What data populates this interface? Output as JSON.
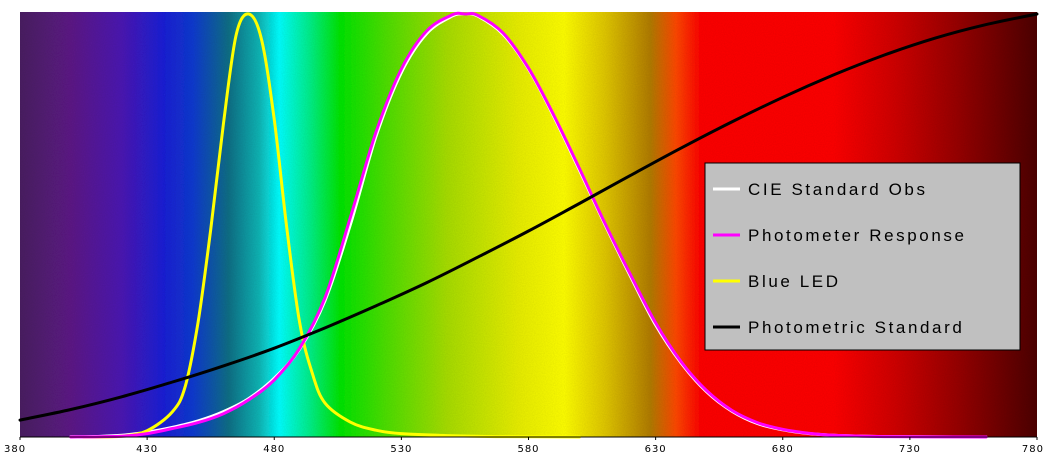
{
  "chart_data": {
    "type": "line",
    "title": "",
    "xlabel": "",
    "ylabel": "",
    "xlim": [
      380,
      780
    ],
    "ylim": [
      0,
      1
    ],
    "x_ticks": [
      "380",
      "430",
      "480",
      "530",
      "580",
      "630",
      "680",
      "730",
      "780"
    ],
    "grid": false,
    "legend_position": "right",
    "background": "visible light spectrum gradient (violet to dark red)",
    "series": [
      {
        "name": "CIE Standard Obs",
        "color": "#ffffff",
        "points": [
          [
            400,
            0.0004
          ],
          [
            410,
            0.0012
          ],
          [
            420,
            0.004
          ],
          [
            430,
            0.0116
          ],
          [
            440,
            0.023
          ],
          [
            450,
            0.038
          ],
          [
            460,
            0.06
          ],
          [
            470,
            0.091
          ],
          [
            480,
            0.139
          ],
          [
            490,
            0.208
          ],
          [
            500,
            0.323
          ],
          [
            510,
            0.503
          ],
          [
            520,
            0.71
          ],
          [
            530,
            0.862
          ],
          [
            540,
            0.954
          ],
          [
            550,
            0.995
          ],
          [
            555,
            1.0
          ],
          [
            560,
            0.995
          ],
          [
            570,
            0.952
          ],
          [
            580,
            0.87
          ],
          [
            590,
            0.757
          ],
          [
            600,
            0.631
          ],
          [
            610,
            0.503
          ],
          [
            620,
            0.381
          ],
          [
            630,
            0.265
          ],
          [
            640,
            0.175
          ],
          [
            650,
            0.107
          ],
          [
            660,
            0.061
          ],
          [
            670,
            0.032
          ],
          [
            680,
            0.017
          ],
          [
            690,
            0.0082
          ],
          [
            700,
            0.0041
          ],
          [
            710,
            0.0021
          ],
          [
            720,
            0.001
          ],
          [
            740,
            0.0002
          ],
          [
            760,
            0.0
          ]
        ]
      },
      {
        "name": "Photometer Response",
        "color": "#ff00ff",
        "points": [
          [
            400,
            0.0
          ],
          [
            420,
            0.002
          ],
          [
            430,
            0.008
          ],
          [
            440,
            0.02
          ],
          [
            450,
            0.034
          ],
          [
            460,
            0.055
          ],
          [
            470,
            0.088
          ],
          [
            480,
            0.135
          ],
          [
            490,
            0.21
          ],
          [
            500,
            0.33
          ],
          [
            510,
            0.52
          ],
          [
            520,
            0.72
          ],
          [
            530,
            0.87
          ],
          [
            540,
            0.96
          ],
          [
            550,
            0.998
          ],
          [
            555,
            1.0
          ],
          [
            560,
            0.997
          ],
          [
            570,
            0.955
          ],
          [
            580,
            0.872
          ],
          [
            590,
            0.76
          ],
          [
            600,
            0.635
          ],
          [
            610,
            0.506
          ],
          [
            620,
            0.385
          ],
          [
            630,
            0.27
          ],
          [
            640,
            0.178
          ],
          [
            650,
            0.11
          ],
          [
            660,
            0.063
          ],
          [
            670,
            0.034
          ],
          [
            680,
            0.018
          ],
          [
            690,
            0.009
          ],
          [
            700,
            0.004
          ],
          [
            720,
            0.001
          ],
          [
            760,
            0.0
          ]
        ]
      },
      {
        "name": "Blue LED",
        "color": "#ffff00",
        "points": [
          [
            405,
            0.0
          ],
          [
            420,
            0.002
          ],
          [
            430,
            0.015
          ],
          [
            440,
            0.06
          ],
          [
            445,
            0.12
          ],
          [
            450,
            0.27
          ],
          [
            455,
            0.49
          ],
          [
            460,
            0.74
          ],
          [
            465,
            0.95
          ],
          [
            470,
            1.0
          ],
          [
            475,
            0.94
          ],
          [
            480,
            0.75
          ],
          [
            485,
            0.49
          ],
          [
            490,
            0.27
          ],
          [
            495,
            0.15
          ],
          [
            500,
            0.08
          ],
          [
            510,
            0.035
          ],
          [
            520,
            0.016
          ],
          [
            530,
            0.008
          ],
          [
            550,
            0.003
          ],
          [
            570,
            0.001
          ],
          [
            600,
            0.0
          ]
        ]
      },
      {
        "name": "Photometric Standard",
        "color": "#000000",
        "points": [
          [
            380,
            0.04
          ],
          [
            400,
            0.065
          ],
          [
            420,
            0.095
          ],
          [
            440,
            0.13
          ],
          [
            460,
            0.168
          ],
          [
            480,
            0.21
          ],
          [
            500,
            0.258
          ],
          [
            520,
            0.31
          ],
          [
            540,
            0.365
          ],
          [
            560,
            0.425
          ],
          [
            580,
            0.487
          ],
          [
            600,
            0.552
          ],
          [
            620,
            0.618
          ],
          [
            640,
            0.683
          ],
          [
            660,
            0.745
          ],
          [
            680,
            0.803
          ],
          [
            700,
            0.856
          ],
          [
            720,
            0.903
          ],
          [
            740,
            0.943
          ],
          [
            760,
            0.975
          ],
          [
            780,
            1.0
          ]
        ]
      }
    ]
  },
  "legend": {
    "items": [
      {
        "label": "CIE Standard Obs",
        "color": "#ffffff"
      },
      {
        "label": "Photometer Response",
        "color": "#ff00ff"
      },
      {
        "label": "Blue LED",
        "color": "#ffff00"
      },
      {
        "label": "Photometric Standard",
        "color": "#000000"
      }
    ],
    "background": "#c0c0c0"
  }
}
